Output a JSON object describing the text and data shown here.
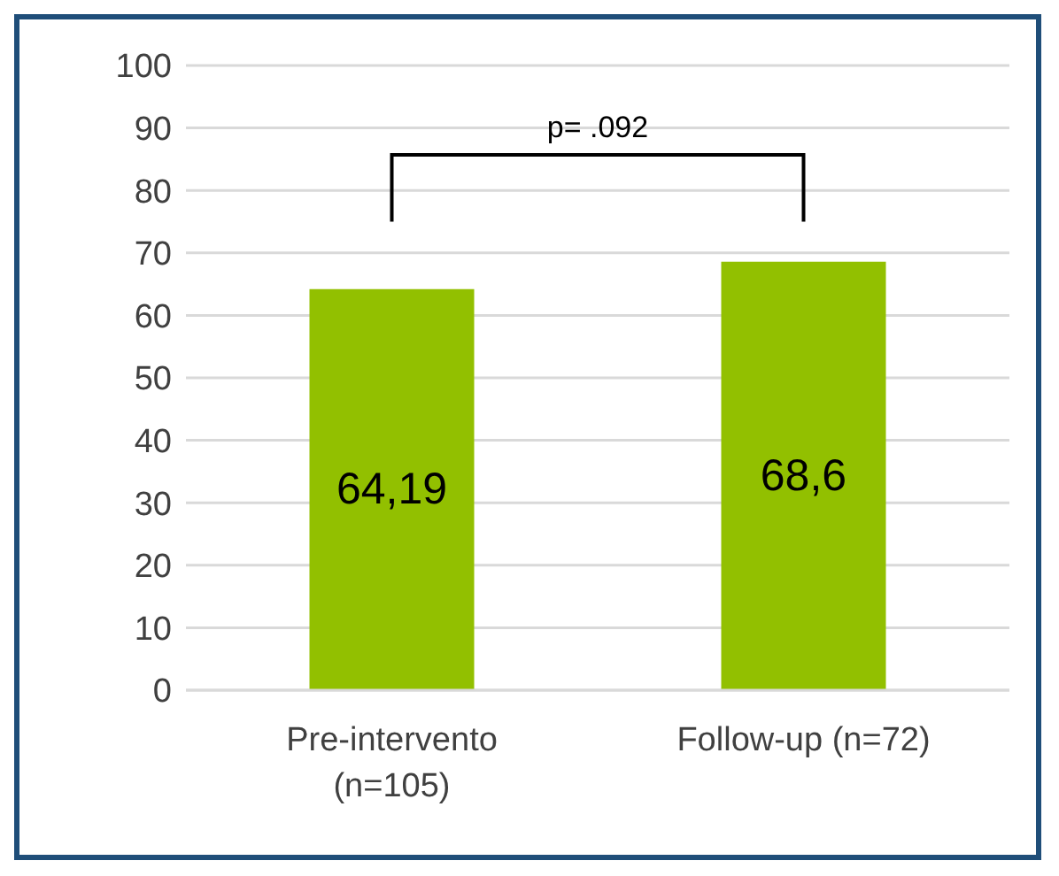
{
  "chart_data": {
    "type": "bar",
    "categories": [
      "Pre-intervento (n=105)",
      "Follow-up (n=72)"
    ],
    "values": [
      64.19,
      68.6
    ],
    "value_labels": [
      "64,19",
      "68,6"
    ],
    "color": "#92c000",
    "ylim": [
      0,
      100
    ],
    "yticks": [
      0,
      10,
      20,
      30,
      40,
      50,
      60,
      70,
      80,
      90,
      100
    ],
    "grid": "y",
    "annotations": [
      "p= .092"
    ]
  }
}
